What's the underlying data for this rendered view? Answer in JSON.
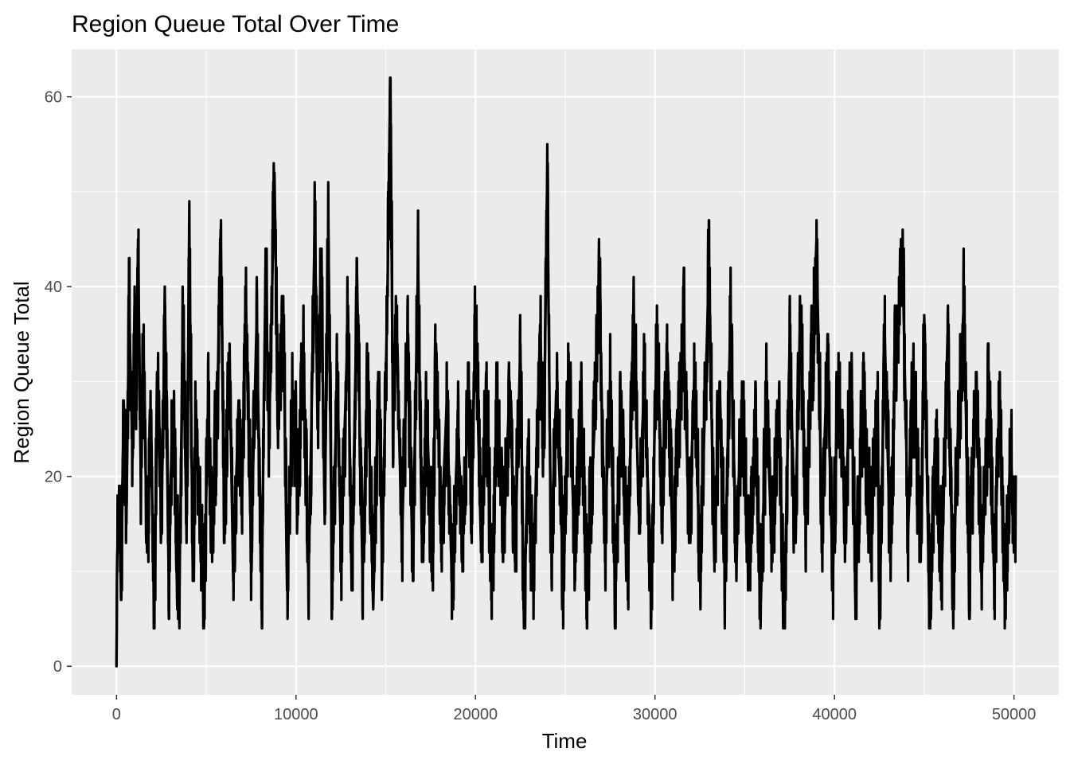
{
  "chart_data": {
    "type": "line",
    "title": "Region Queue Total Over Time",
    "xlabel": "Time",
    "ylabel": "Region Queue Total",
    "xlim": [
      -2500,
      52500
    ],
    "ylim": [
      -3,
      65
    ],
    "x_ticks": [
      0,
      10000,
      20000,
      30000,
      40000,
      50000
    ],
    "x_tick_labels": [
      "0",
      "10000",
      "20000",
      "30000",
      "40000",
      "50000"
    ],
    "y_ticks": [
      0,
      20,
      40,
      60
    ],
    "y_tick_labels": [
      "0",
      "20",
      "40",
      "60"
    ],
    "grid": true,
    "legend": "none",
    "colors": {
      "panel": "#ebebeb",
      "grid": "#ffffff",
      "line": "#000000",
      "tick": "#333333"
    },
    "series": [
      {
        "keypoints": [
          [
            0,
            0
          ],
          [
            30,
            11
          ],
          [
            150,
            19
          ],
          [
            250,
            7
          ],
          [
            400,
            28
          ],
          [
            550,
            15
          ],
          [
            700,
            38
          ],
          [
            900,
            22
          ],
          [
            1000,
            38
          ],
          [
            1100,
            28
          ],
          [
            1200,
            45
          ],
          [
            1350,
            20
          ],
          [
            1500,
            34
          ],
          [
            1700,
            12
          ],
          [
            1900,
            25
          ],
          [
            2100,
            7
          ],
          [
            2300,
            29
          ],
          [
            2500,
            15
          ],
          [
            2700,
            38
          ],
          [
            2900,
            10
          ],
          [
            3100,
            26
          ],
          [
            3300,
            18
          ],
          [
            3500,
            7
          ],
          [
            3700,
            38
          ],
          [
            3900,
            14
          ],
          [
            4050,
            46
          ],
          [
            4250,
            10
          ],
          [
            4400,
            25
          ],
          [
            4650,
            16
          ],
          [
            4900,
            8
          ],
          [
            5100,
            28
          ],
          [
            5300,
            14
          ],
          [
            5600,
            26
          ],
          [
            5800,
            46
          ],
          [
            6000,
            16
          ],
          [
            6300,
            32
          ],
          [
            6500,
            9
          ],
          [
            6800,
            28
          ],
          [
            7000,
            18
          ],
          [
            7200,
            39
          ],
          [
            7500,
            12
          ],
          [
            7800,
            36
          ],
          [
            8100,
            9
          ],
          [
            8300,
            42
          ],
          [
            8500,
            24
          ],
          [
            8800,
            52
          ],
          [
            9000,
            26
          ],
          [
            9300,
            36
          ],
          [
            9500,
            8
          ],
          [
            9800,
            28
          ],
          [
            10100,
            19
          ],
          [
            10400,
            33
          ],
          [
            10700,
            10
          ],
          [
            10900,
            30
          ],
          [
            11050,
            48
          ],
          [
            11200,
            25
          ],
          [
            11400,
            43
          ],
          [
            11600,
            15
          ],
          [
            11800,
            47
          ],
          [
            12000,
            9
          ],
          [
            12300,
            31
          ],
          [
            12500,
            12
          ],
          [
            12900,
            37
          ],
          [
            13100,
            8
          ],
          [
            13400,
            41
          ],
          [
            13700,
            10
          ],
          [
            14000,
            31
          ],
          [
            14300,
            6
          ],
          [
            14600,
            31
          ],
          [
            14800,
            11
          ],
          [
            15100,
            40
          ],
          [
            15250,
            62
          ],
          [
            15400,
            26
          ],
          [
            15600,
            35
          ],
          [
            15900,
            13
          ],
          [
            16200,
            34
          ],
          [
            16500,
            11
          ],
          [
            16800,
            43
          ],
          [
            17000,
            14
          ],
          [
            17300,
            26
          ],
          [
            17600,
            10
          ],
          [
            17800,
            34
          ],
          [
            18100,
            14
          ],
          [
            18400,
            28
          ],
          [
            18700,
            8
          ],
          [
            19000,
            25
          ],
          [
            19300,
            14
          ],
          [
            19600,
            27
          ],
          [
            19800,
            17
          ],
          [
            20000,
            37
          ],
          [
            20300,
            13
          ],
          [
            20600,
            29
          ],
          [
            20900,
            8
          ],
          [
            21200,
            27
          ],
          [
            21600,
            14
          ],
          [
            21900,
            30
          ],
          [
            22200,
            11
          ],
          [
            22500,
            34
          ],
          [
            22700,
            4
          ],
          [
            22900,
            22
          ],
          [
            23200,
            8
          ],
          [
            23600,
            36
          ],
          [
            23800,
            22
          ],
          [
            24000,
            52
          ],
          [
            24200,
            12
          ],
          [
            24500,
            29
          ],
          [
            24900,
            9
          ],
          [
            25200,
            32
          ],
          [
            25500,
            13
          ],
          [
            25900,
            26
          ],
          [
            26200,
            8
          ],
          [
            26600,
            24
          ],
          [
            26900,
            40
          ],
          [
            27200,
            13
          ],
          [
            27500,
            30
          ],
          [
            27800,
            8
          ],
          [
            28100,
            28
          ],
          [
            28500,
            11
          ],
          [
            28800,
            38
          ],
          [
            29100,
            16
          ],
          [
            29400,
            30
          ],
          [
            29800,
            9
          ],
          [
            30100,
            35
          ],
          [
            30400,
            18
          ],
          [
            30700,
            33
          ],
          [
            31000,
            11
          ],
          [
            31300,
            26
          ],
          [
            31600,
            35
          ],
          [
            31900,
            14
          ],
          [
            32200,
            31
          ],
          [
            32500,
            10
          ],
          [
            32800,
            28
          ],
          [
            33000,
            42
          ],
          [
            33300,
            11
          ],
          [
            33600,
            30
          ],
          [
            33900,
            9
          ],
          [
            34200,
            37
          ],
          [
            34500,
            14
          ],
          [
            34900,
            28
          ],
          [
            35200,
            11
          ],
          [
            35600,
            25
          ],
          [
            35900,
            7
          ],
          [
            36200,
            28
          ],
          [
            36500,
            13
          ],
          [
            36900,
            26
          ],
          [
            37200,
            5
          ],
          [
            37500,
            34
          ],
          [
            37800,
            14
          ],
          [
            38100,
            38
          ],
          [
            38400,
            16
          ],
          [
            38700,
            30
          ],
          [
            39000,
            45
          ],
          [
            39300,
            15
          ],
          [
            39600,
            33
          ],
          [
            39900,
            9
          ],
          [
            40200,
            30
          ],
          [
            40600,
            16
          ],
          [
            40900,
            31
          ],
          [
            41200,
            9
          ],
          [
            41600,
            28
          ],
          [
            42000,
            14
          ],
          [
            42400,
            27
          ],
          [
            42500,
            4
          ],
          [
            42800,
            35
          ],
          [
            43100,
            12
          ],
          [
            43400,
            33
          ],
          [
            43800,
            42
          ],
          [
            44100,
            14
          ],
          [
            44400,
            31
          ],
          [
            44800,
            11
          ],
          [
            45000,
            37
          ],
          [
            45300,
            4
          ],
          [
            45600,
            24
          ],
          [
            46000,
            11
          ],
          [
            46300,
            35
          ],
          [
            46600,
            8
          ],
          [
            46900,
            26
          ],
          [
            47200,
            38
          ],
          [
            47500,
            11
          ],
          [
            47900,
            29
          ],
          [
            48200,
            9
          ],
          [
            48600,
            31
          ],
          [
            48900,
            9
          ],
          [
            49200,
            29
          ],
          [
            49500,
            6
          ],
          [
            49800,
            23
          ],
          [
            50000,
            16
          ],
          [
            50100,
            15
          ]
        ],
        "noise_amplitude": 8,
        "y_min": 4,
        "y_max": 62
      }
    ]
  }
}
